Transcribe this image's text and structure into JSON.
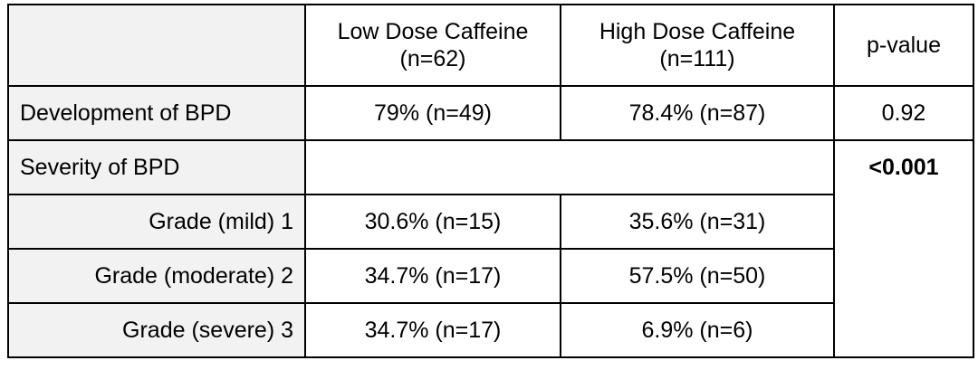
{
  "table": {
    "header": {
      "col_low_line1": "Low Dose Caffeine",
      "col_low_line2": "(n=62)",
      "col_high_line1": "High Dose Caffeine",
      "col_high_line2": "(n=111)",
      "col_p": "p-value"
    },
    "rows": {
      "development": {
        "label": "Development of BPD",
        "low": "79% (n=49)",
        "high": "78.4% (n=87)",
        "p": "0.92"
      },
      "severity": {
        "label": "Severity of BPD",
        "p": "<0.001"
      },
      "grade1": {
        "label": "Grade (mild) 1",
        "low": "30.6% (n=15)",
        "high": "35.6% (n=31)"
      },
      "grade2": {
        "label": "Grade (moderate) 2",
        "low": "34.7% (n=17)",
        "high": "57.5% (n=50)"
      },
      "grade3": {
        "label": "Grade (severe) 3",
        "low": "34.7% (n=17)",
        "high": "6.9% (n=6)"
      }
    }
  }
}
